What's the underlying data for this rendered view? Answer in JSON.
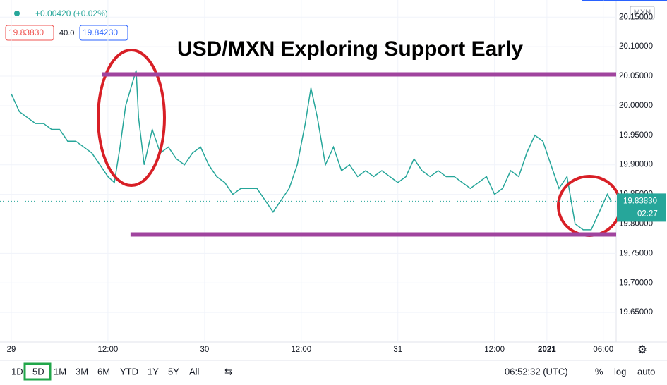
{
  "header": {
    "change": "+0.00420 (+0.02%)",
    "bid": "19.83830",
    "spread": "40.0",
    "ask": "19.84230"
  },
  "chart_data": {
    "type": "line",
    "title": "USD/MXN Exploring Support Early",
    "currency": "MXN",
    "x": [
      0,
      1,
      2,
      3,
      4,
      5,
      6,
      7,
      8,
      9,
      10,
      11,
      12,
      12.8,
      13.5,
      14.2,
      15.5,
      15.8,
      16.5,
      17.5,
      18.5,
      19.5,
      20.5,
      21.5,
      22.5,
      23.5,
      24.5,
      25.5,
      26.5,
      27.5,
      28.5,
      29.5,
      30.5,
      31.5,
      32.5,
      33.5,
      34.5,
      35.5,
      36.5,
      37.2,
      38,
      39,
      40,
      41,
      42,
      43,
      44,
      45,
      46,
      47,
      48,
      49,
      50,
      51,
      52,
      53,
      54,
      55,
      56,
      57,
      58,
      59,
      60,
      61,
      62,
      63,
      64,
      65,
      66,
      67,
      68,
      69,
      70,
      71,
      72,
      73,
      74,
      74.5
    ],
    "series": [
      {
        "color": "#26a69a",
        "values": [
          20.02,
          19.99,
          19.98,
          19.97,
          19.97,
          19.96,
          19.96,
          19.94,
          19.94,
          19.93,
          19.92,
          19.9,
          19.88,
          19.87,
          19.93,
          20.0,
          20.06,
          19.98,
          19.9,
          19.96,
          19.92,
          19.93,
          19.91,
          19.9,
          19.92,
          19.93,
          19.9,
          19.88,
          19.87,
          19.85,
          19.86,
          19.86,
          19.86,
          19.84,
          19.82,
          19.84,
          19.86,
          19.9,
          19.97,
          20.03,
          19.98,
          19.9,
          19.93,
          19.89,
          19.9,
          19.88,
          19.89,
          19.88,
          19.89,
          19.88,
          19.87,
          19.88,
          19.91,
          19.89,
          19.88,
          19.89,
          19.88,
          19.88,
          19.87,
          19.86,
          19.87,
          19.88,
          19.85,
          19.86,
          19.89,
          19.88,
          19.92,
          19.95,
          19.94,
          19.9,
          19.86,
          19.88,
          19.8,
          19.79,
          19.79,
          19.82,
          19.85,
          19.838
        ]
      }
    ],
    "xlim": [
      -1.4,
      75.1
    ],
    "ylim": [
      19.6,
      20.179
    ],
    "yticks": [
      {
        "value": 19.65,
        "label": "19.65000"
      },
      {
        "value": 19.7,
        "label": "19.70000"
      },
      {
        "value": 19.75,
        "label": "19.75000"
      },
      {
        "value": 19.8,
        "label": "19.80000"
      },
      {
        "value": 19.85,
        "label": "19.85000"
      },
      {
        "value": 19.9,
        "label": "19.90000"
      },
      {
        "value": 19.95,
        "label": "19.95000"
      },
      {
        "value": 20,
        "label": "20.00000"
      },
      {
        "value": 20.05,
        "label": "20.05000"
      },
      {
        "value": 20.1,
        "label": "20.10000"
      },
      {
        "value": 20.15,
        "label": "20.15000"
      }
    ],
    "xticks": [
      {
        "value": 0,
        "label": "29"
      },
      {
        "value": 12,
        "label": "12:00"
      },
      {
        "value": 24,
        "label": "30"
      },
      {
        "value": 36,
        "label": "12:00"
      },
      {
        "value": 48,
        "label": "31"
      },
      {
        "value": 60,
        "label": "12:00"
      },
      {
        "value": 66.5,
        "label": "2021"
      },
      {
        "value": 73.5,
        "label": "06:00"
      }
    ],
    "last_price": {
      "value": 19.8383,
      "label": "19.83830"
    },
    "countdown": "02:27",
    "levels": [
      {
        "value": 20.053,
        "x_start": 11.3,
        "color": "#a0449e"
      },
      {
        "value": 19.782,
        "x_start": 14.8,
        "color": "#a0449e"
      }
    ]
  },
  "toolbar": {
    "ranges": [
      "1D",
      "5D",
      "1M",
      "3M",
      "6M",
      "YTD",
      "1Y",
      "5Y",
      "All"
    ],
    "time": "06:52:32 (UTC)",
    "options": [
      "%",
      "log",
      "auto"
    ]
  }
}
